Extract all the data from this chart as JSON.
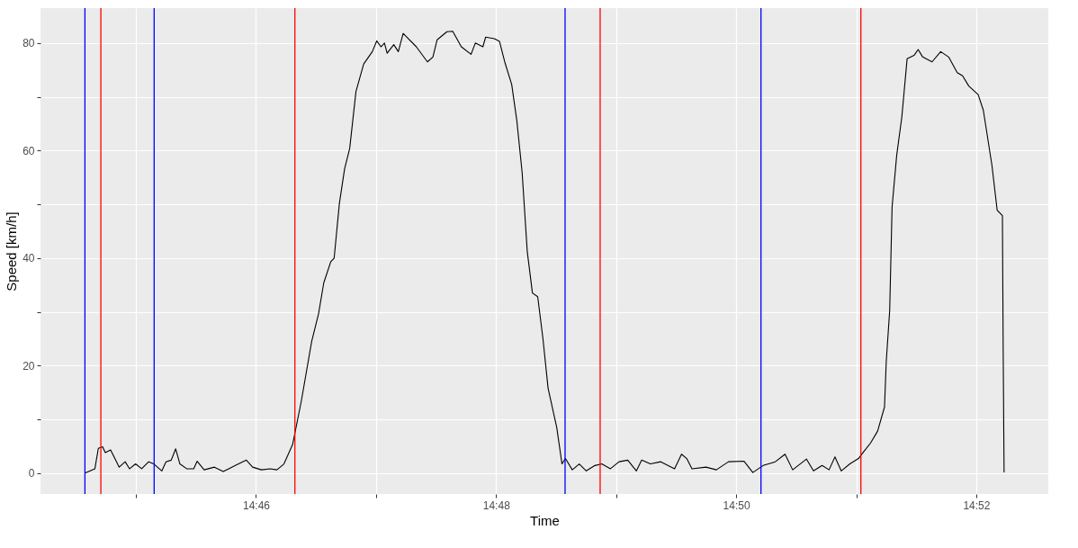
{
  "chart_data": {
    "type": "line",
    "xlabel": "Time",
    "ylabel": "Speed [km/h]",
    "xlim": [
      14.73675,
      14.87667
    ],
    "ylim": [
      -3.9,
      86.5
    ],
    "xticks": [
      {
        "value": 14.75,
        "label": null
      },
      {
        "value": 14.76667,
        "label": "14:46"
      },
      {
        "value": 14.78333,
        "label": null
      },
      {
        "value": 14.8,
        "label": "14:48"
      },
      {
        "value": 14.81667,
        "label": null
      },
      {
        "value": 14.83333,
        "label": "14:50"
      },
      {
        "value": 14.85,
        "label": null
      },
      {
        "value": 14.86667,
        "label": "14:52"
      }
    ],
    "yticks": [
      0,
      {
        "value": 10,
        "label": null
      },
      20,
      {
        "value": 30,
        "label": null
      },
      40,
      {
        "value": 50,
        "label": null
      },
      60,
      {
        "value": 70,
        "label": null
      },
      80
    ],
    "grid": true,
    "line_style": "solid",
    "marker": "none",
    "x": [
      14.74292,
      14.7443,
      14.74478,
      14.74537,
      14.74575,
      14.74648,
      14.74768,
      14.7485,
      14.74912,
      14.74995,
      14.7508,
      14.75177,
      14.75248,
      14.7536,
      14.75417,
      14.7549,
      14.75552,
      14.7561,
      14.75705,
      14.75802,
      14.7585,
      14.75947,
      14.7609,
      14.76212,
      14.7638,
      14.76533,
      14.7662,
      14.76742,
      14.76862,
      14.76958,
      14.77055,
      14.77175,
      14.77295,
      14.7744,
      14.77535,
      14.77608,
      14.77705,
      14.77752,
      14.77825,
      14.77897,
      14.77968,
      14.78055,
      14.78162,
      14.78282,
      14.78343,
      14.78402,
      14.7845,
      14.78488,
      14.7858,
      14.78643,
      14.7871,
      14.78893,
      14.79047,
      14.79123,
      14.79182,
      14.79317,
      14.79398,
      14.79518,
      14.79653,
      14.79712,
      14.79817,
      14.79855,
      14.79977,
      14.80048,
      14.8012,
      14.80217,
      14.80288,
      14.80362,
      14.80433,
      14.80505,
      14.80578,
      14.8065,
      14.80722,
      14.80842,
      14.80915,
      14.80963,
      14.81058,
      14.81155,
      14.81252,
      14.81372,
      14.81468,
      14.81588,
      14.81708,
      14.81828,
      14.81948,
      14.82022,
      14.82142,
      14.82287,
      14.82478,
      14.82575,
      14.82647,
      14.8272,
      14.82915,
      14.83058,
      14.83227,
      14.83443,
      14.83565,
      14.83708,
      14.83877,
      14.84012,
      14.84118,
      14.8431,
      14.84407,
      14.84527,
      14.84623,
      14.84705,
      14.84792,
      14.84912,
      14.85032,
      14.85105,
      14.852,
      14.85297,
      14.85393,
      14.85417,
      14.85465,
      14.85498,
      14.85562,
      14.85633,
      14.85707,
      14.85803,
      14.8586,
      14.85923,
      14.86053,
      14.86173,
      14.86283,
      14.86403,
      14.86477,
      14.86563,
      14.86693,
      14.86765,
      14.86885,
      14.86957,
      14.8703,
      14.8704,
      14.87053
    ],
    "series": [
      {
        "color": "#000000",
        "values": [
          0,
          0.8,
          4.6,
          4.9,
          3.8,
          4.3,
          1.1,
          2.1,
          0.8,
          1.7,
          0.8,
          2.1,
          1.7,
          0.4,
          2.1,
          2.4,
          4.5,
          1.7,
          0.8,
          0.8,
          2.2,
          0.6,
          1.1,
          0.3,
          1.4,
          2.4,
          1.1,
          0.6,
          0.8,
          0.6,
          1.7,
          5.3,
          13.3,
          24.5,
          29.6,
          35.4,
          39.3,
          40.0,
          50.2,
          56.6,
          60.4,
          71.0,
          76.1,
          78.4,
          80.4,
          79.3,
          80.0,
          78.1,
          79.7,
          78.4,
          81.8,
          79.3,
          76.5,
          77.4,
          80.6,
          82.1,
          82.2,
          79.3,
          77.9,
          80.0,
          79.3,
          81.1,
          80.8,
          80.3,
          76.5,
          72.3,
          65.6,
          55.9,
          41.2,
          33.5,
          32.8,
          25.1,
          15.8,
          8.5,
          1.7,
          2.7,
          0.6,
          1.7,
          0.4,
          1.4,
          1.7,
          0.8,
          2.1,
          2.4,
          0.4,
          2.4,
          1.7,
          2.1,
          0.8,
          3.5,
          2.7,
          0.8,
          1.1,
          0.6,
          2.1,
          2.2,
          0.1,
          1.4,
          2.1,
          3.5,
          0.6,
          2.6,
          0.4,
          1.4,
          0.6,
          3.0,
          0.4,
          1.7,
          2.7,
          4.0,
          5.6,
          7.8,
          12.3,
          20.7,
          30.3,
          49.5,
          59.1,
          66.2,
          77.1,
          77.7,
          78.8,
          77.4,
          76.5,
          78.4,
          77.4,
          74.5,
          73.9,
          72.0,
          70.4,
          67.5,
          57.2,
          48.9,
          47.9,
          23.9,
          0.1
        ]
      }
    ],
    "ref_lines": [
      {
        "axis": "x",
        "value": 14.74292,
        "color": "#0000ff"
      },
      {
        "axis": "x",
        "value": 14.74513,
        "color": "#ff0000"
      },
      {
        "axis": "x",
        "value": 14.75253,
        "color": "#0000ff"
      },
      {
        "axis": "x",
        "value": 14.77207,
        "color": "#ff0000"
      },
      {
        "axis": "x",
        "value": 14.80958,
        "color": "#0000ff"
      },
      {
        "axis": "x",
        "value": 14.81445,
        "color": "#ff0000"
      },
      {
        "axis": "x",
        "value": 14.83678,
        "color": "#0000ff"
      },
      {
        "axis": "x",
        "value": 14.85065,
        "color": "#ff0000"
      }
    ]
  }
}
